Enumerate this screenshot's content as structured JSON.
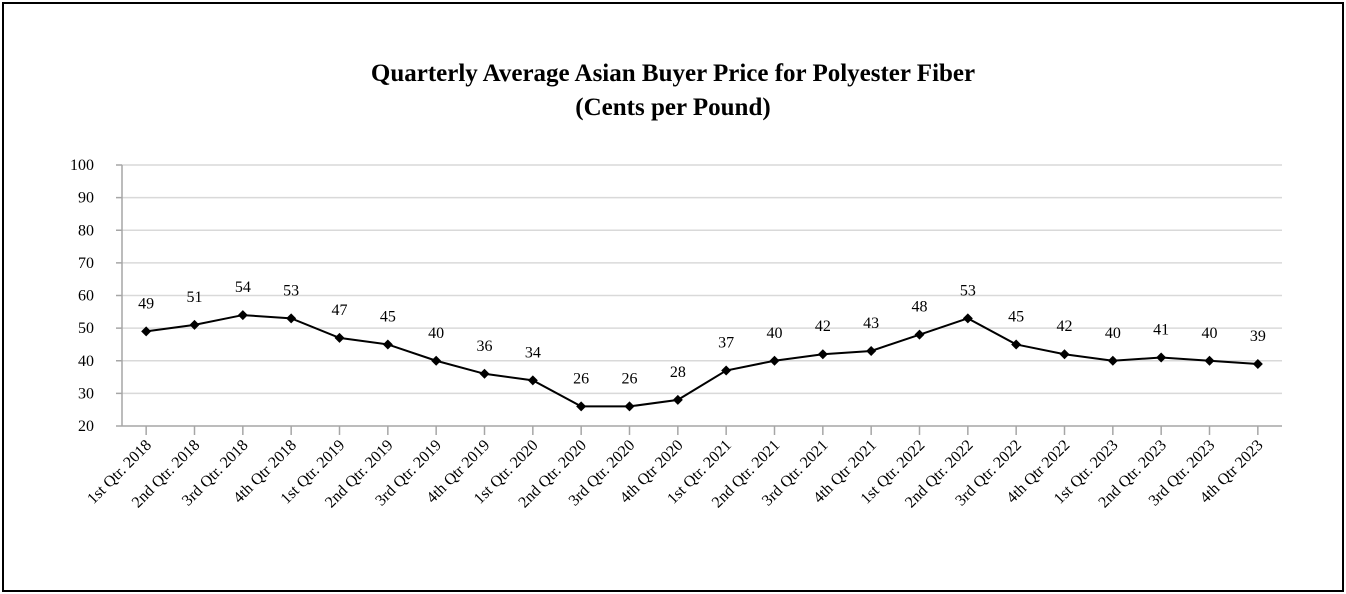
{
  "chart_data": {
    "type": "line",
    "title": "Quarterly Average Asian Buyer Price for Polyester Fiber",
    "subtitle": "(Cents per Pound)",
    "xlabel": "",
    "ylabel": "",
    "ylim": [
      20,
      100
    ],
    "yticks": [
      20,
      30,
      40,
      50,
      60,
      70,
      80,
      90,
      100
    ],
    "grid": true,
    "legend": "none",
    "line_color": "#000000",
    "grid_color": "#d9d9d9",
    "categories": [
      "1st Qtr. 2018",
      "2nd Qtr. 2018",
      "3rd Qtr. 2018",
      "4th Qtr 2018",
      "1st Qtr. 2019",
      "2nd Qtr. 2019",
      "3rd Qtr. 2019",
      "4th Qtr 2019",
      "1st Qtr. 2020",
      "2nd Qtr. 2020",
      "3rd Qtr. 2020",
      "4th Qtr 2020",
      "1st Qtr. 2021",
      "2nd Qtr. 2021",
      "3rd Qtr. 2021",
      "4th Qtr 2021",
      "1st Qtr. 2022",
      "2nd Qtr. 2022",
      "3rd Qtr. 2022",
      "4th Qtr 2022",
      "1st Qtr. 2023",
      "2nd Qtr. 2023",
      "3rd Qtr. 2023",
      "4th Qtr 2023"
    ],
    "values": [
      49,
      51,
      54,
      53,
      47,
      45,
      40,
      36,
      34,
      26,
      26,
      28,
      37,
      40,
      42,
      43,
      48,
      53,
      45,
      42,
      40,
      41,
      40,
      39
    ]
  }
}
